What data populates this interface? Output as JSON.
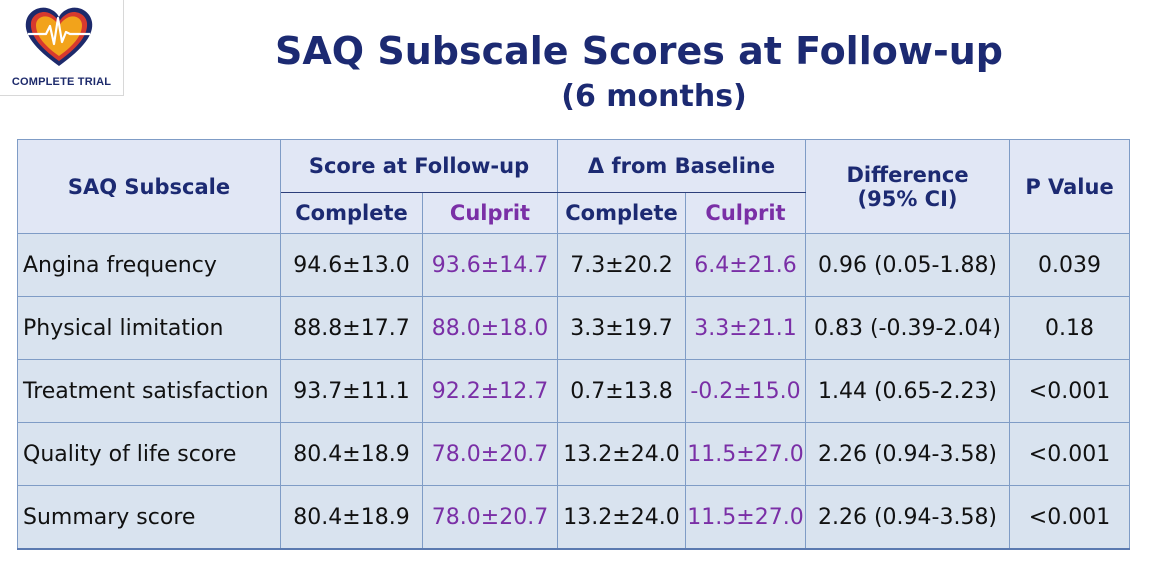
{
  "logo": {
    "text": "COMPLETE TRIAL",
    "icon": "heart-ecg-logo"
  },
  "title": "SAQ Subscale Scores at Follow-up",
  "subtitle": "(6 months)",
  "table": {
    "headers": {
      "subscale": "SAQ Subscale",
      "score_group": "Score at Follow-up",
      "delta_group": "Δ from Baseline",
      "difference": "Difference",
      "difference_ci": "(95% CI)",
      "pvalue": "P Value",
      "complete": "Complete",
      "culprit": "Culprit"
    },
    "rows": [
      {
        "subscale": "Angina frequency",
        "score_complete": "94.6±13.0",
        "score_culprit": "93.6±14.7",
        "delta_complete": "7.3±20.2",
        "delta_culprit": "6.4±21.6",
        "difference": "0.96 (0.05-1.88)",
        "p": "0.039"
      },
      {
        "subscale": "Physical limitation",
        "score_complete": "88.8±17.7",
        "score_culprit": "88.0±18.0",
        "delta_complete": "3.3±19.7",
        "delta_culprit": "3.3±21.1",
        "difference": "0.83 (-0.39-2.04)",
        "p": "0.18"
      },
      {
        "subscale": "Treatment satisfaction",
        "score_complete": "93.7±11.1",
        "score_culprit": "92.2±12.7",
        "delta_complete": "0.7±13.8",
        "delta_culprit": "-0.2±15.0",
        "difference": "1.44 (0.65-2.23)",
        "p": "<0.001"
      },
      {
        "subscale": "Quality of life score",
        "score_complete": "80.4±18.9",
        "score_culprit": "78.0±20.7",
        "delta_complete": "13.2±24.0",
        "delta_culprit": "11.5±27.0",
        "difference": "2.26 (0.94-3.58)",
        "p": "<0.001"
      },
      {
        "subscale": "Summary score",
        "score_complete": "80.4±18.9",
        "score_culprit": "78.0±20.7",
        "delta_complete": "13.2±24.0",
        "delta_culprit": "11.5±27.0",
        "difference": "2.26 (0.94-3.58)",
        "p": "<0.001"
      }
    ]
  },
  "colors": {
    "title": "#1c2a72",
    "culprit": "#7a2fa6",
    "cell_bg": "#d9e3ef",
    "header_bg": "#e1e7f5",
    "border": "#7f9cc6"
  }
}
